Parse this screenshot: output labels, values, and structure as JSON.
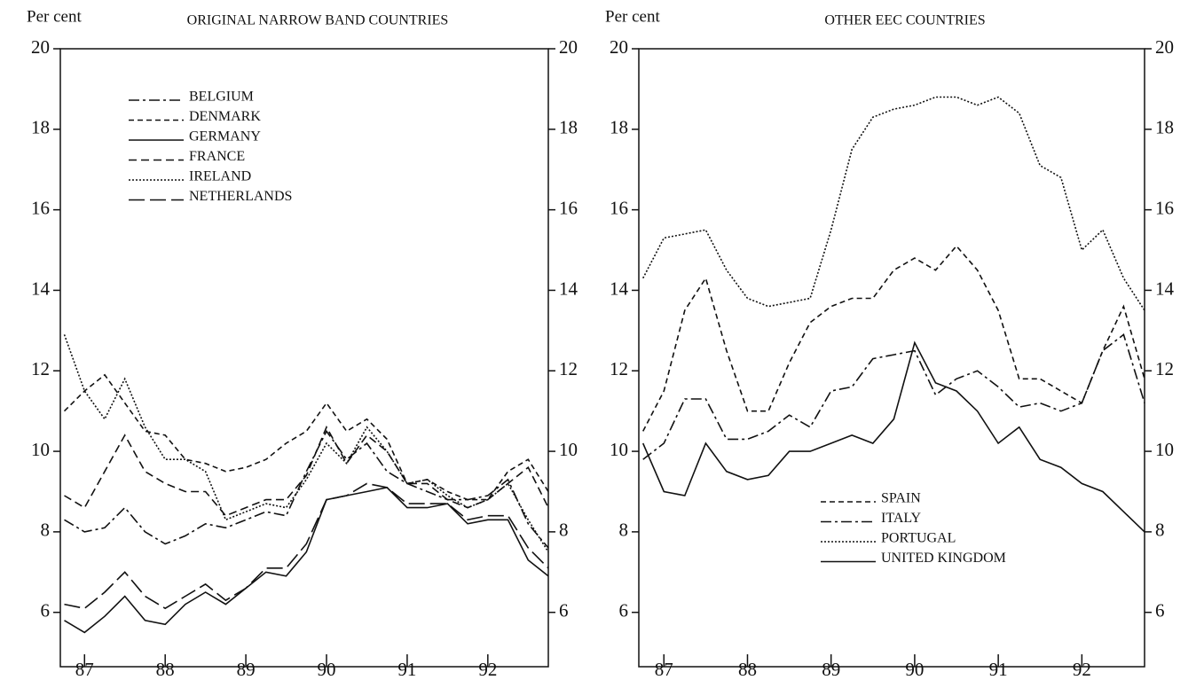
{
  "chart_data": [
    {
      "type": "line",
      "title": "ORIGINAL NARROW BAND COUNTRIES",
      "ylabel": "Per cent",
      "x": [
        1986.75,
        1987.0,
        1987.25,
        1987.5,
        1987.75,
        1988.0,
        1988.25,
        1988.5,
        1988.75,
        1989.0,
        1989.25,
        1989.5,
        1989.75,
        1990.0,
        1990.25,
        1990.5,
        1990.75,
        1991.0,
        1991.25,
        1991.5,
        1991.75,
        1992.0,
        1992.25,
        1992.5,
        1992.75
      ],
      "xlim": [
        1986.7,
        1992.75
      ],
      "xticks": [
        {
          "value": 1987,
          "label": "87"
        },
        {
          "value": 1988,
          "label": "88"
        },
        {
          "value": 1989,
          "label": "89"
        },
        {
          "value": 1990,
          "label": "90"
        },
        {
          "value": 1991,
          "label": "91"
        },
        {
          "value": 1992,
          "label": "92"
        }
      ],
      "ylim": [
        4.65,
        20
      ],
      "yticks": [
        6,
        8,
        10,
        12,
        14,
        16,
        18,
        20
      ],
      "legend": "upper left",
      "series": [
        {
          "name": "BELGIUM",
          "color": "#111",
          "dash": "dash-dot",
          "values": [
            8.3,
            8.0,
            8.1,
            8.6,
            8.0,
            7.7,
            7.9,
            8.2,
            8.1,
            8.3,
            8.5,
            8.4,
            9.5,
            10.5,
            9.8,
            10.2,
            9.5,
            9.2,
            9.0,
            8.8,
            8.8,
            8.9,
            9.3,
            8.2,
            7.6
          ]
        },
        {
          "name": "DENMARK",
          "color": "#111",
          "dash": "dashed",
          "values": [
            11.0,
            11.5,
            11.9,
            11.2,
            10.5,
            10.4,
            9.8,
            9.7,
            9.5,
            9.6,
            9.8,
            10.2,
            10.5,
            11.2,
            10.5,
            10.8,
            10.3,
            9.2,
            9.3,
            9.0,
            8.8,
            8.8,
            9.5,
            9.8,
            9.0
          ]
        },
        {
          "name": "GERMANY",
          "color": "#111",
          "dash": "solid",
          "values": [
            5.8,
            5.5,
            5.9,
            6.4,
            5.8,
            5.7,
            6.2,
            6.5,
            6.2,
            6.6,
            7.0,
            6.9,
            7.5,
            8.8,
            8.9,
            9.0,
            9.1,
            8.6,
            8.6,
            8.7,
            8.2,
            8.3,
            8.3,
            7.3,
            6.9
          ]
        },
        {
          "name": "FRANCE",
          "color": "#111",
          "dash": "medium-dash",
          "values": [
            8.9,
            8.6,
            9.5,
            10.4,
            9.5,
            9.2,
            9.0,
            9.0,
            8.4,
            8.6,
            8.8,
            8.8,
            9.4,
            10.6,
            9.7,
            10.4,
            10.0,
            9.2,
            9.2,
            8.8,
            8.6,
            8.8,
            9.2,
            9.6,
            8.6
          ]
        },
        {
          "name": "IRELAND",
          "color": "#111",
          "dash": "dotted",
          "values": [
            12.9,
            11.5,
            10.8,
            11.8,
            10.6,
            9.8,
            9.8,
            9.5,
            8.3,
            8.5,
            8.7,
            8.6,
            9.3,
            10.2,
            9.7,
            10.6,
            10.0,
            9.2,
            9.3,
            8.9,
            8.6,
            8.8,
            9.2,
            8.3,
            7.5
          ]
        },
        {
          "name": "NETHERLANDS",
          "color": "#111",
          "dash": "long-dash",
          "values": [
            6.2,
            6.1,
            6.5,
            7.0,
            6.4,
            6.1,
            6.4,
            6.7,
            6.3,
            6.6,
            7.1,
            7.1,
            7.7,
            8.8,
            8.9,
            9.2,
            9.1,
            8.7,
            8.7,
            8.7,
            8.3,
            8.4,
            8.4,
            7.6,
            7.1
          ]
        }
      ]
    },
    {
      "type": "line",
      "title": "OTHER EEC COUNTRIES",
      "ylabel": "Per cent",
      "x": [
        1986.75,
        1987.0,
        1987.25,
        1987.5,
        1987.75,
        1988.0,
        1988.25,
        1988.5,
        1988.75,
        1989.0,
        1989.25,
        1989.5,
        1989.75,
        1990.0,
        1990.25,
        1990.5,
        1990.75,
        1991.0,
        1991.25,
        1991.5,
        1991.75,
        1992.0,
        1992.25,
        1992.5,
        1992.75
      ],
      "xlim": [
        1986.7,
        1992.75
      ],
      "xticks": [
        {
          "value": 1987,
          "label": "87"
        },
        {
          "value": 1988,
          "label": "88"
        },
        {
          "value": 1989,
          "label": "89"
        },
        {
          "value": 1990,
          "label": "90"
        },
        {
          "value": 1991,
          "label": "91"
        },
        {
          "value": 1992,
          "label": "92"
        }
      ],
      "ylim": [
        4.65,
        20
      ],
      "yticks": [
        6,
        8,
        10,
        12,
        14,
        16,
        18,
        20
      ],
      "legend": "lower center",
      "series": [
        {
          "name": "SPAIN",
          "color": "#111",
          "dash": "dashed",
          "values": [
            10.5,
            11.5,
            13.5,
            14.3,
            12.5,
            11.0,
            11.0,
            12.2,
            13.2,
            13.6,
            13.8,
            13.8,
            14.5,
            14.8,
            14.5,
            15.1,
            14.5,
            13.5,
            11.8,
            11.8,
            11.5,
            11.2,
            12.5,
            13.6,
            11.8
          ]
        },
        {
          "name": "ITALY",
          "color": "#111",
          "dash": "dash-dot",
          "values": [
            9.8,
            10.2,
            11.3,
            11.3,
            10.3,
            10.3,
            10.5,
            10.9,
            10.6,
            11.5,
            11.6,
            12.3,
            12.4,
            12.5,
            11.4,
            11.8,
            12.0,
            11.6,
            11.1,
            11.2,
            11.0,
            11.2,
            12.5,
            12.9,
            11.2
          ]
        },
        {
          "name": "PORTUGAL",
          "color": "#111",
          "dash": "dotted",
          "values": [
            14.3,
            15.3,
            15.4,
            15.5,
            14.5,
            13.8,
            13.6,
            13.7,
            13.8,
            15.5,
            17.5,
            18.3,
            18.5,
            18.6,
            18.8,
            18.8,
            18.6,
            18.8,
            18.4,
            17.1,
            16.8,
            15.0,
            15.5,
            14.3,
            13.5
          ]
        },
        {
          "name": "UNITED KINGDOM",
          "color": "#111",
          "dash": "solid",
          "values": [
            10.2,
            9.0,
            8.9,
            10.2,
            9.5,
            9.3,
            9.4,
            10.0,
            10.0,
            10.2,
            10.4,
            10.2,
            10.8,
            12.7,
            11.7,
            11.5,
            11.0,
            10.2,
            10.6,
            9.8,
            9.6,
            9.2,
            9.0,
            8.5,
            8.0
          ]
        }
      ]
    }
  ]
}
